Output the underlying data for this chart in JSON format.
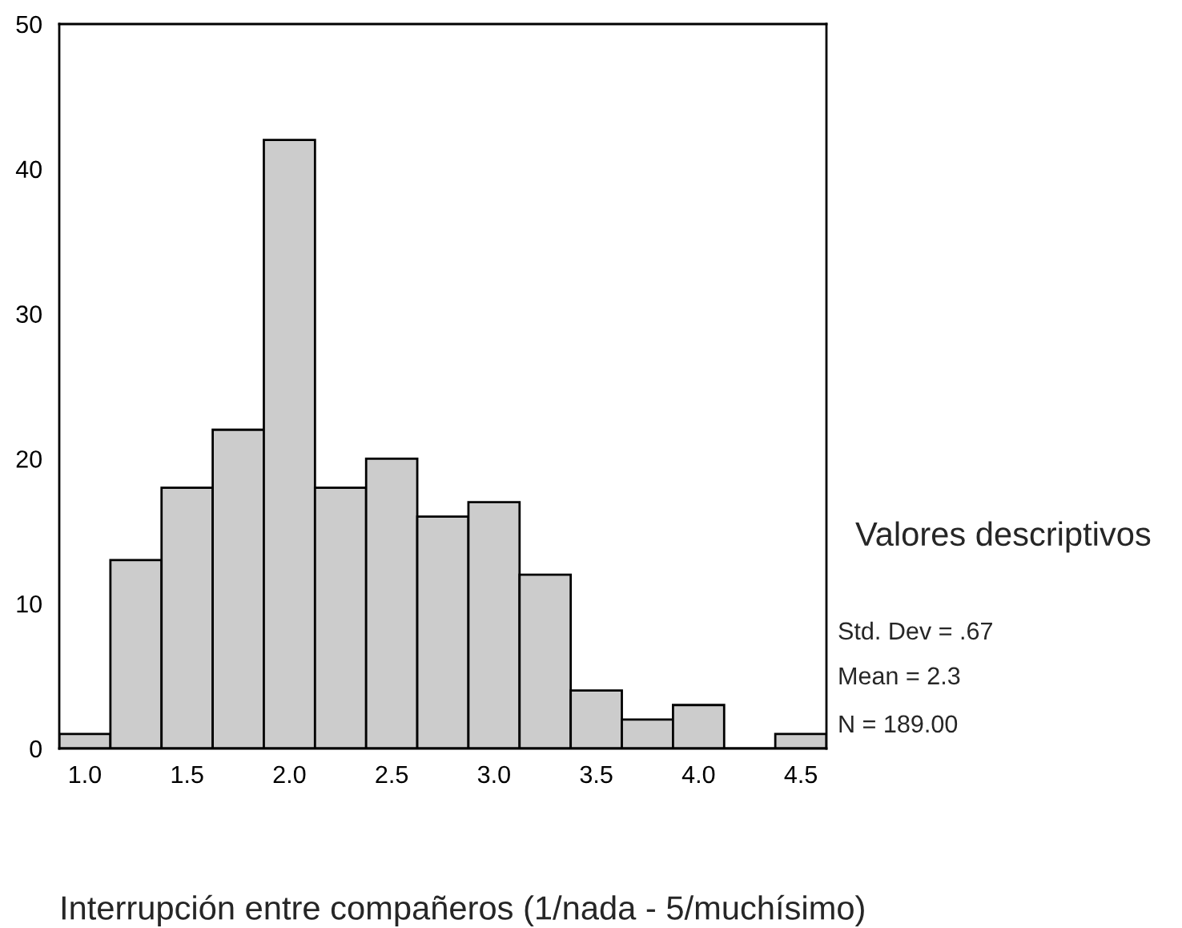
{
  "chart_data": {
    "type": "histogram",
    "xlabel": "Interrupción entre compañeros (1/nada - 5/muchísimo)",
    "bins": [
      0.875,
      1.125,
      1.375,
      1.625,
      1.875,
      2.125,
      2.375,
      2.625,
      2.875,
      3.125,
      3.375,
      3.625,
      3.875,
      4.125,
      4.375,
      4.625
    ],
    "values": [
      1,
      13,
      18,
      22,
      42,
      18,
      20,
      16,
      17,
      12,
      4,
      2,
      3,
      0,
      1
    ],
    "color": "#cccccc",
    "xlim": [
      0.875,
      4.625
    ],
    "xticks": [
      {
        "value": 1.0,
        "label": "1.0"
      },
      {
        "value": 1.5,
        "label": "1.5"
      },
      {
        "value": 2.0,
        "label": "2.0"
      },
      {
        "value": 2.5,
        "label": "2.5"
      },
      {
        "value": 3.0,
        "label": "3.0"
      },
      {
        "value": 3.5,
        "label": "3.5"
      },
      {
        "value": 4.0,
        "label": "4.0"
      },
      {
        "value": 4.5,
        "label": "4.5"
      }
    ],
    "ylim": [
      0,
      50
    ],
    "yticks": [
      0,
      10,
      20,
      30,
      40,
      50
    ],
    "grid": false,
    "annotations": [
      "Valores descriptivos",
      "Std. Dev = .67",
      "Mean = 2.3",
      "N = 189.00"
    ]
  }
}
